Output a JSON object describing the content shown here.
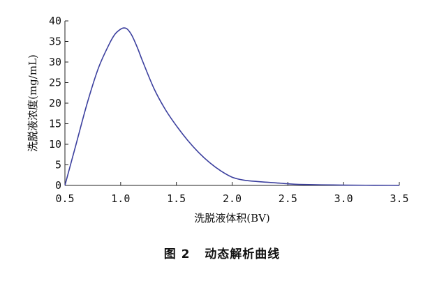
{
  "figure": {
    "caption": "图 2   动态解析曲线"
  },
  "colors": {
    "line": "#3b3f9e",
    "axis": "#222222"
  },
  "chart_data": {
    "type": "line",
    "title": "",
    "xlabel": "洗脱液体积(BV)",
    "ylabel": "洗脱液浓度(mg/mL)",
    "xlim": [
      0.5,
      3.5
    ],
    "ylim": [
      0,
      40
    ],
    "xticks": [
      0.5,
      1.0,
      1.5,
      2.0,
      2.5,
      3.0,
      3.5
    ],
    "xtick_labels": [
      "0.5",
      "1.0",
      "1.5",
      "2.0",
      "2.5",
      "3.0",
      "3.5"
    ],
    "yticks": [
      0,
      5,
      10,
      15,
      20,
      25,
      30,
      35,
      40
    ],
    "ytick_labels": [
      "0",
      "5",
      "10",
      "15",
      "20",
      "25",
      "30",
      "35",
      "40"
    ],
    "grid": false,
    "series": [
      {
        "x": [
          0.5,
          0.6,
          0.7,
          0.8,
          0.9,
          0.95,
          1.0,
          1.03,
          1.06,
          1.1,
          1.15,
          1.2,
          1.3,
          1.4,
          1.5,
          1.6,
          1.7,
          1.8,
          1.9,
          2.0,
          2.1,
          2.2,
          2.3,
          2.4,
          2.5,
          2.6,
          2.8,
          3.0,
          3.2,
          3.4,
          3.5
        ],
        "y": [
          0,
          10,
          20,
          28.5,
          34.5,
          36.8,
          38.0,
          38.3,
          38.0,
          36.5,
          33.5,
          30.0,
          23.5,
          18.5,
          14.5,
          11.0,
          8.0,
          5.5,
          3.5,
          2.0,
          1.3,
          1.0,
          0.8,
          0.6,
          0.4,
          0.25,
          0.15,
          0.08,
          0.04,
          0.02,
          0.0
        ]
      }
    ]
  }
}
